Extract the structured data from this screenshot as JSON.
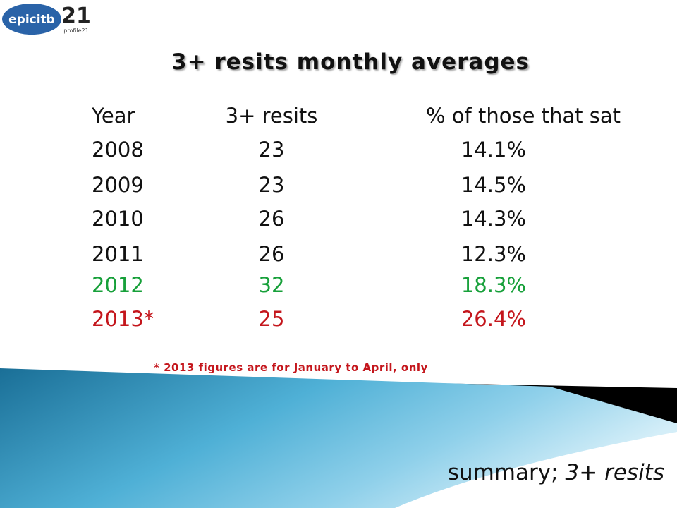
{
  "logos": {
    "epic": "epicitb",
    "profile": "profile21",
    "profile_mark": "21"
  },
  "title": "3+ resits monthly averages",
  "table": {
    "header": [
      "Year",
      "3+ resits",
      "% of those that sat"
    ],
    "rows": [
      [
        "2008",
        "23",
        "14.1%"
      ],
      [
        "2009",
        "23",
        "14.5%"
      ],
      [
        "2010",
        "26",
        "14.3%"
      ],
      [
        "2011",
        "26",
        "12.3%"
      ],
      [
        "2012",
        "32",
        "18.3%"
      ],
      [
        "2013*",
        "25",
        "26.4%"
      ]
    ]
  },
  "footnote": "* 2013 figures are for January to April, only",
  "summary": {
    "lead": "summary;",
    "topic": "3+ resits"
  }
}
